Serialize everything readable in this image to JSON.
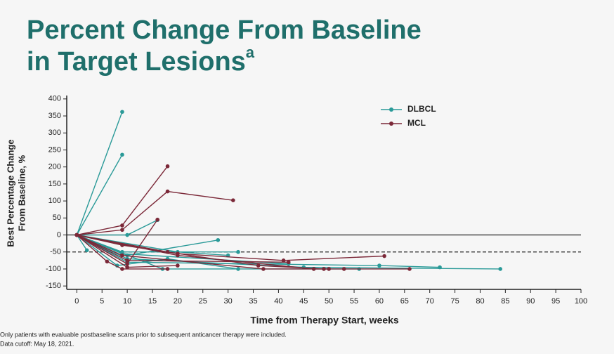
{
  "chart_data": {
    "type": "line",
    "title_lines": [
      "Percent Change From Baseline",
      "in Target Lesions"
    ],
    "title_superscript": "a",
    "xlabel": "Time from Therapy Start, weeks",
    "ylabel_lines": [
      "Best Percentage Change",
      "From Baseline, %"
    ],
    "footnotes": [
      "Only patients with evaluable postbaseline scans prior to subsequent anticancer therapy were included.",
      "Data cutoff: May 18, 2021."
    ],
    "xlim": [
      -2,
      100
    ],
    "ylim": [
      -160,
      410
    ],
    "xticks": [
      0,
      5,
      10,
      15,
      20,
      25,
      30,
      35,
      40,
      45,
      50,
      55,
      60,
      65,
      70,
      75,
      80,
      85,
      90,
      95,
      100
    ],
    "yticks": [
      -150,
      -100,
      -50,
      0,
      50,
      100,
      150,
      200,
      250,
      300,
      350,
      400
    ],
    "hlines": [
      {
        "value": 0,
        "style": "solid"
      },
      {
        "value": -50,
        "style": "dashed"
      }
    ],
    "legend": "upper right",
    "series": [
      {
        "name": "DLBCL",
        "color": "#2a9a98",
        "lines": [
          {
            "x": [
              0,
              9
            ],
            "y": [
              0,
              362
            ]
          },
          {
            "x": [
              0,
              9
            ],
            "y": [
              0,
              236
            ]
          },
          {
            "x": [
              0,
              10,
              16
            ],
            "y": [
              0,
              0,
              44
            ]
          },
          {
            "x": [
              0,
              2
            ],
            "y": [
              0,
              -45
            ]
          },
          {
            "x": [
              0,
              10,
              28
            ],
            "y": [
              0,
              -60,
              -15
            ]
          },
          {
            "x": [
              0,
              9,
              32
            ],
            "y": [
              0,
              -50,
              -50
            ]
          },
          {
            "x": [
              0,
              8,
              18,
              32
            ],
            "y": [
              0,
              -90,
              -70,
              -100
            ]
          },
          {
            "x": [
              0,
              10,
              45,
              84
            ],
            "y": [
              0,
              -70,
              -95,
              -100
            ]
          },
          {
            "x": [
              0,
              10,
              60,
              72
            ],
            "y": [
              0,
              -80,
              -90,
              -95
            ]
          },
          {
            "x": [
              0,
              20,
              30
            ],
            "y": [
              0,
              -50,
              -60
            ]
          },
          {
            "x": [
              0,
              17,
              56
            ],
            "y": [
              0,
              -100,
              -100
            ]
          },
          {
            "x": [
              0,
              9,
              42
            ],
            "y": [
              0,
              -55,
              -85
            ]
          }
        ]
      },
      {
        "name": "MCL",
        "color": "#7b2838",
        "lines": [
          {
            "x": [
              0,
              9,
              18
            ],
            "y": [
              0,
              28,
              202
            ]
          },
          {
            "x": [
              0,
              9,
              18,
              31
            ],
            "y": [
              0,
              15,
              128,
              102
            ]
          },
          {
            "x": [
              0,
              10,
              16
            ],
            "y": [
              0,
              -85,
              45
            ]
          },
          {
            "x": [
              0,
              6,
              9,
              18
            ],
            "y": [
              0,
              -78,
              -100,
              -100
            ]
          },
          {
            "x": [
              0,
              9,
              20,
              41,
              61
            ],
            "y": [
              0,
              -30,
              -55,
              -75,
              -62
            ]
          },
          {
            "x": [
              0,
              10,
              20
            ],
            "y": [
              0,
              -95,
              -90
            ]
          },
          {
            "x": [
              0,
              18,
              36,
              49
            ],
            "y": [
              0,
              -50,
              -90,
              -100
            ]
          },
          {
            "x": [
              0,
              9,
              37,
              53,
              66
            ],
            "y": [
              0,
              -60,
              -100,
              -100,
              -100
            ]
          },
          {
            "x": [
              0,
              10,
              42
            ],
            "y": [
              0,
              -75,
              -80
            ]
          },
          {
            "x": [
              0,
              20,
              47,
              50
            ],
            "y": [
              0,
              -60,
              -100,
              -100
            ]
          }
        ]
      }
    ]
  }
}
